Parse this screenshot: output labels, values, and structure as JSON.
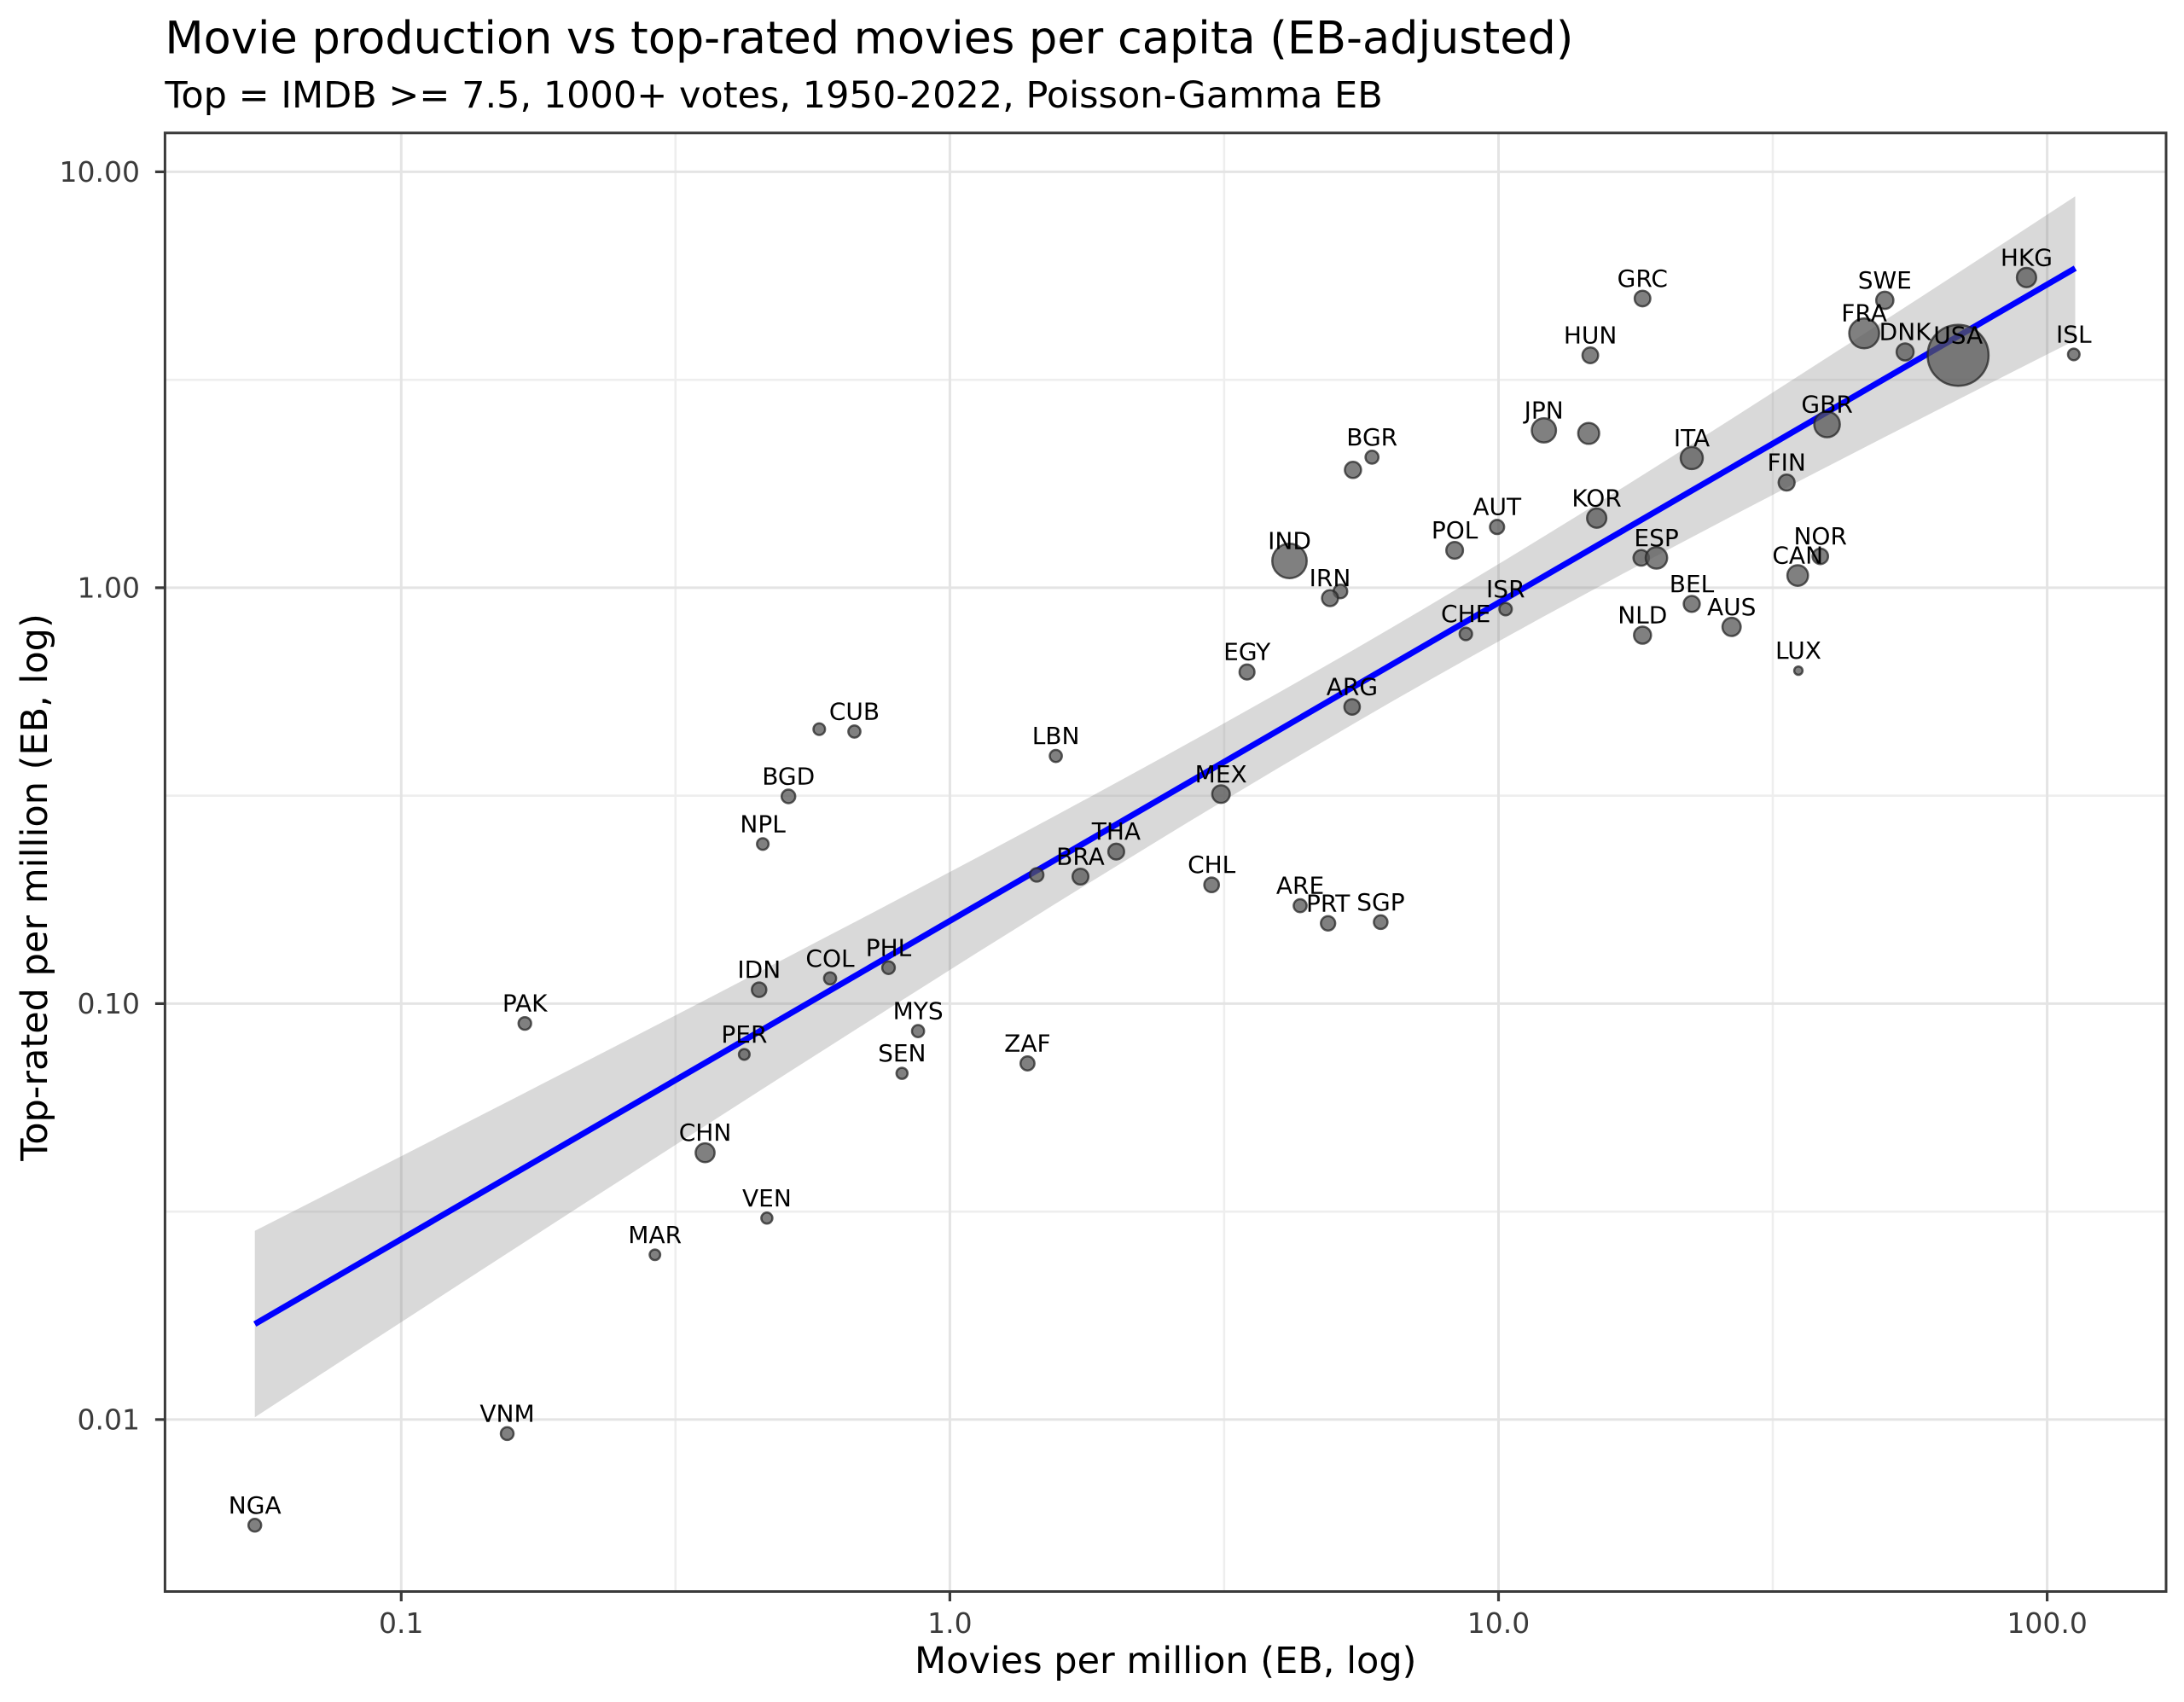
{
  "chart_data": {
    "type": "scatter",
    "title": "Movie production vs top-rated movies per capita (EB-adjusted)",
    "subtitle": "Top = IMDB >= 7.5, 1000+ votes, 1950-2022, Poisson-Gamma EB",
    "xlabel": "Movies per million (EB, log)",
    "ylabel": "Top-rated per million (EB, log)",
    "x_scale": "log",
    "y_scale": "log",
    "xlim": [
      0.0372,
      164.8
    ],
    "ylim": [
      0.00386,
      12.4
    ],
    "grid": "both",
    "legend": "none",
    "x_tick_values": [
      0.1,
      1.0,
      10.0,
      100.0
    ],
    "x_tick_labels": [
      "0.1",
      "1.0",
      "10.0",
      "100.0"
    ],
    "y_tick_values": [
      10.0,
      1.0,
      0.1,
      0.01
    ],
    "y_tick_labels": [
      "10.00",
      "1.00",
      "0.10",
      "0.01"
    ],
    "x_minor_tick_values": [
      0.3162,
      3.162,
      31.62
    ],
    "y_minor_tick_values": [
      3.162,
      0.3162,
      0.03162
    ],
    "regression_line": {
      "slope_loglog": 0.7651,
      "intercept_log10": -0.8012,
      "x_start": 0.0541,
      "x_end": 112.5
    },
    "confidence_band": {
      "halfwidth_log10_a": 0.0079,
      "halfwidth_log10_b_left": 0.01026,
      "halfwidth_log10_b_right": 0.01328,
      "halfwidth_u_min": 0.7627,
      "x_start": 0.0541,
      "x_end": 112.5
    },
    "points": [
      {
        "label": "NGA",
        "x": 0.0541,
        "y": 0.00557,
        "r": 7.5
      },
      {
        "label": "VNM",
        "x": 0.156,
        "y": 0.00925,
        "r": 7.5
      },
      {
        "label": "MAR",
        "x": 0.29,
        "y": 0.0249,
        "r": 6.2
      },
      {
        "label": "CHN",
        "x": 0.358,
        "y": 0.0438,
        "r": 11.1
      },
      {
        "label": "VEN",
        "x": 0.464,
        "y": 0.0305,
        "r": 6.5
      },
      {
        "label": "PAK",
        "x": 0.168,
        "y": 0.0896,
        "r": 7.4
      },
      {
        "label": "IDN",
        "x": 0.449,
        "y": 0.108,
        "r": 8.5
      },
      {
        "label": "PER",
        "x": 0.422,
        "y": 0.0755,
        "r": 6.3
      },
      {
        "label": "COL",
        "x": 0.605,
        "y": 0.115,
        "r": 7.1
      },
      {
        "label": "PHL",
        "x": 0.773,
        "y": 0.122,
        "r": 7.4
      },
      {
        "label": "MYS",
        "x": 0.875,
        "y": 0.0859,
        "r": 7.1
      },
      {
        "label": "SEN",
        "x": 0.818,
        "y": 0.068,
        "r": 6.5
      },
      {
        "label": "",
        "x": 0.578,
        "y": 0.457,
        "r": 6.8
      },
      {
        "label": "CUB",
        "x": 0.67,
        "y": 0.451,
        "r": 7.1
      },
      {
        "label": "BGD",
        "x": 0.508,
        "y": 0.315,
        "r": 8.0
      },
      {
        "label": "NPL",
        "x": 0.456,
        "y": 0.242,
        "r": 6.8
      },
      {
        "label": "ZAF",
        "x": 1.385,
        "y": 0.0718,
        "r": 8.2
      },
      {
        "label": "LBN",
        "x": 1.56,
        "y": 0.394,
        "r": 7.1
      },
      {
        "label": "",
        "x": 1.44,
        "y": 0.204,
        "r": 7.9
      },
      {
        "label": "BRA",
        "x": 1.73,
        "y": 0.202,
        "r": 9.3
      },
      {
        "label": "THA",
        "x": 2.01,
        "y": 0.232,
        "r": 9.3
      },
      {
        "label": "MEX",
        "x": 3.12,
        "y": 0.319,
        "r": 10.3
      },
      {
        "label": "CHL",
        "x": 3.0,
        "y": 0.193,
        "r": 8.6
      },
      {
        "label": "ARE",
        "x": 4.35,
        "y": 0.172,
        "r": 7.6
      },
      {
        "label": "PRT",
        "x": 4.89,
        "y": 0.156,
        "r": 8.4
      },
      {
        "label": "SGP",
        "x": 6.1,
        "y": 0.157,
        "r": 8.0
      },
      {
        "label": "EGY",
        "x": 3.48,
        "y": 0.627,
        "r": 8.8
      },
      {
        "label": "ARG",
        "x": 5.41,
        "y": 0.517,
        "r": 9.1
      },
      {
        "label": "IND",
        "x": 4.16,
        "y": 1.16,
        "r": 20.2
      },
      {
        "label": "",
        "x": 5.15,
        "y": 0.98,
        "r": 8.0
      },
      {
        "label": "IRN",
        "x": 4.93,
        "y": 0.944,
        "r": 9.4
      },
      {
        "label": "POL",
        "x": 8.32,
        "y": 1.23,
        "r": 9.8
      },
      {
        "label": "AUT",
        "x": 9.94,
        "y": 1.4,
        "r": 8.3
      },
      {
        "label": "ISR",
        "x": 10.3,
        "y": 0.888,
        "r": 7.3
      },
      {
        "label": "CHE",
        "x": 8.72,
        "y": 0.774,
        "r": 7.3
      },
      {
        "label": "KOR",
        "x": 15.1,
        "y": 1.47,
        "r": 11.3
      },
      {
        "label": "GRC",
        "x": 18.3,
        "y": 4.96,
        "r": 9.2
      },
      {
        "label": "HUN",
        "x": 14.7,
        "y": 3.62,
        "r": 9.2
      },
      {
        "label": "JPN",
        "x": 12.1,
        "y": 2.39,
        "r": 14.2
      },
      {
        "label": "",
        "x": 14.6,
        "y": 2.35,
        "r": 12.3
      },
      {
        "label": "BGR",
        "x": 5.88,
        "y": 2.06,
        "r": 7.6
      },
      {
        "label": "",
        "x": 5.43,
        "y": 1.92,
        "r": 9.5
      },
      {
        "label": "ITA",
        "x": 22.5,
        "y": 2.05,
        "r": 13.0
      },
      {
        "label": "",
        "x": 18.2,
        "y": 1.18,
        "r": 9.1
      },
      {
        "label": "ESP",
        "x": 19.4,
        "y": 1.18,
        "r": 12.6
      },
      {
        "label": "NLD",
        "x": 18.3,
        "y": 0.769,
        "r": 10.0
      },
      {
        "label": "BEL",
        "x": 22.5,
        "y": 0.914,
        "r": 9.4
      },
      {
        "label": "AUS",
        "x": 26.6,
        "y": 0.805,
        "r": 10.7
      },
      {
        "label": "LUX",
        "x": 35.2,
        "y": 0.632,
        "r": 4.9
      },
      {
        "label": "FIN",
        "x": 33.5,
        "y": 1.79,
        "r": 9.4
      },
      {
        "label": "NOR",
        "x": 38.6,
        "y": 1.19,
        "r": 9.1
      },
      {
        "label": "CAN",
        "x": 35.1,
        "y": 1.07,
        "r": 12.1
      },
      {
        "label": "SWE",
        "x": 50.6,
        "y": 4.91,
        "r": 10.1
      },
      {
        "label": "FRA",
        "x": 46.4,
        "y": 4.09,
        "r": 17.5
      },
      {
        "label": "DNK",
        "x": 55.1,
        "y": 3.69,
        "r": 10.0
      },
      {
        "label": "GBR",
        "x": 39.7,
        "y": 2.47,
        "r": 15.0
      },
      {
        "label": "USA",
        "x": 68.8,
        "y": 3.62,
        "r": 35.7
      },
      {
        "label": "HKG",
        "x": 91.7,
        "y": 5.57,
        "r": 11.3
      },
      {
        "label": "ISL",
        "x": 111.8,
        "y": 3.64,
        "r": 6.8
      }
    ],
    "colors": {
      "regression_line": "#0000ff",
      "confidence_band": "#808080",
      "confidence_band_alpha": 0.3,
      "point_fill": "#555555",
      "point_fill_alpha": 0.75,
      "point_edge": "#262626",
      "point_edge_alpha": 0.75,
      "grid_major": "#e4e4e4",
      "grid_minor": "#eeeeee",
      "spine": "#3a3a3a",
      "tick_label": "#3b3b3b",
      "text": "#000000",
      "background": "#ffffff"
    }
  }
}
